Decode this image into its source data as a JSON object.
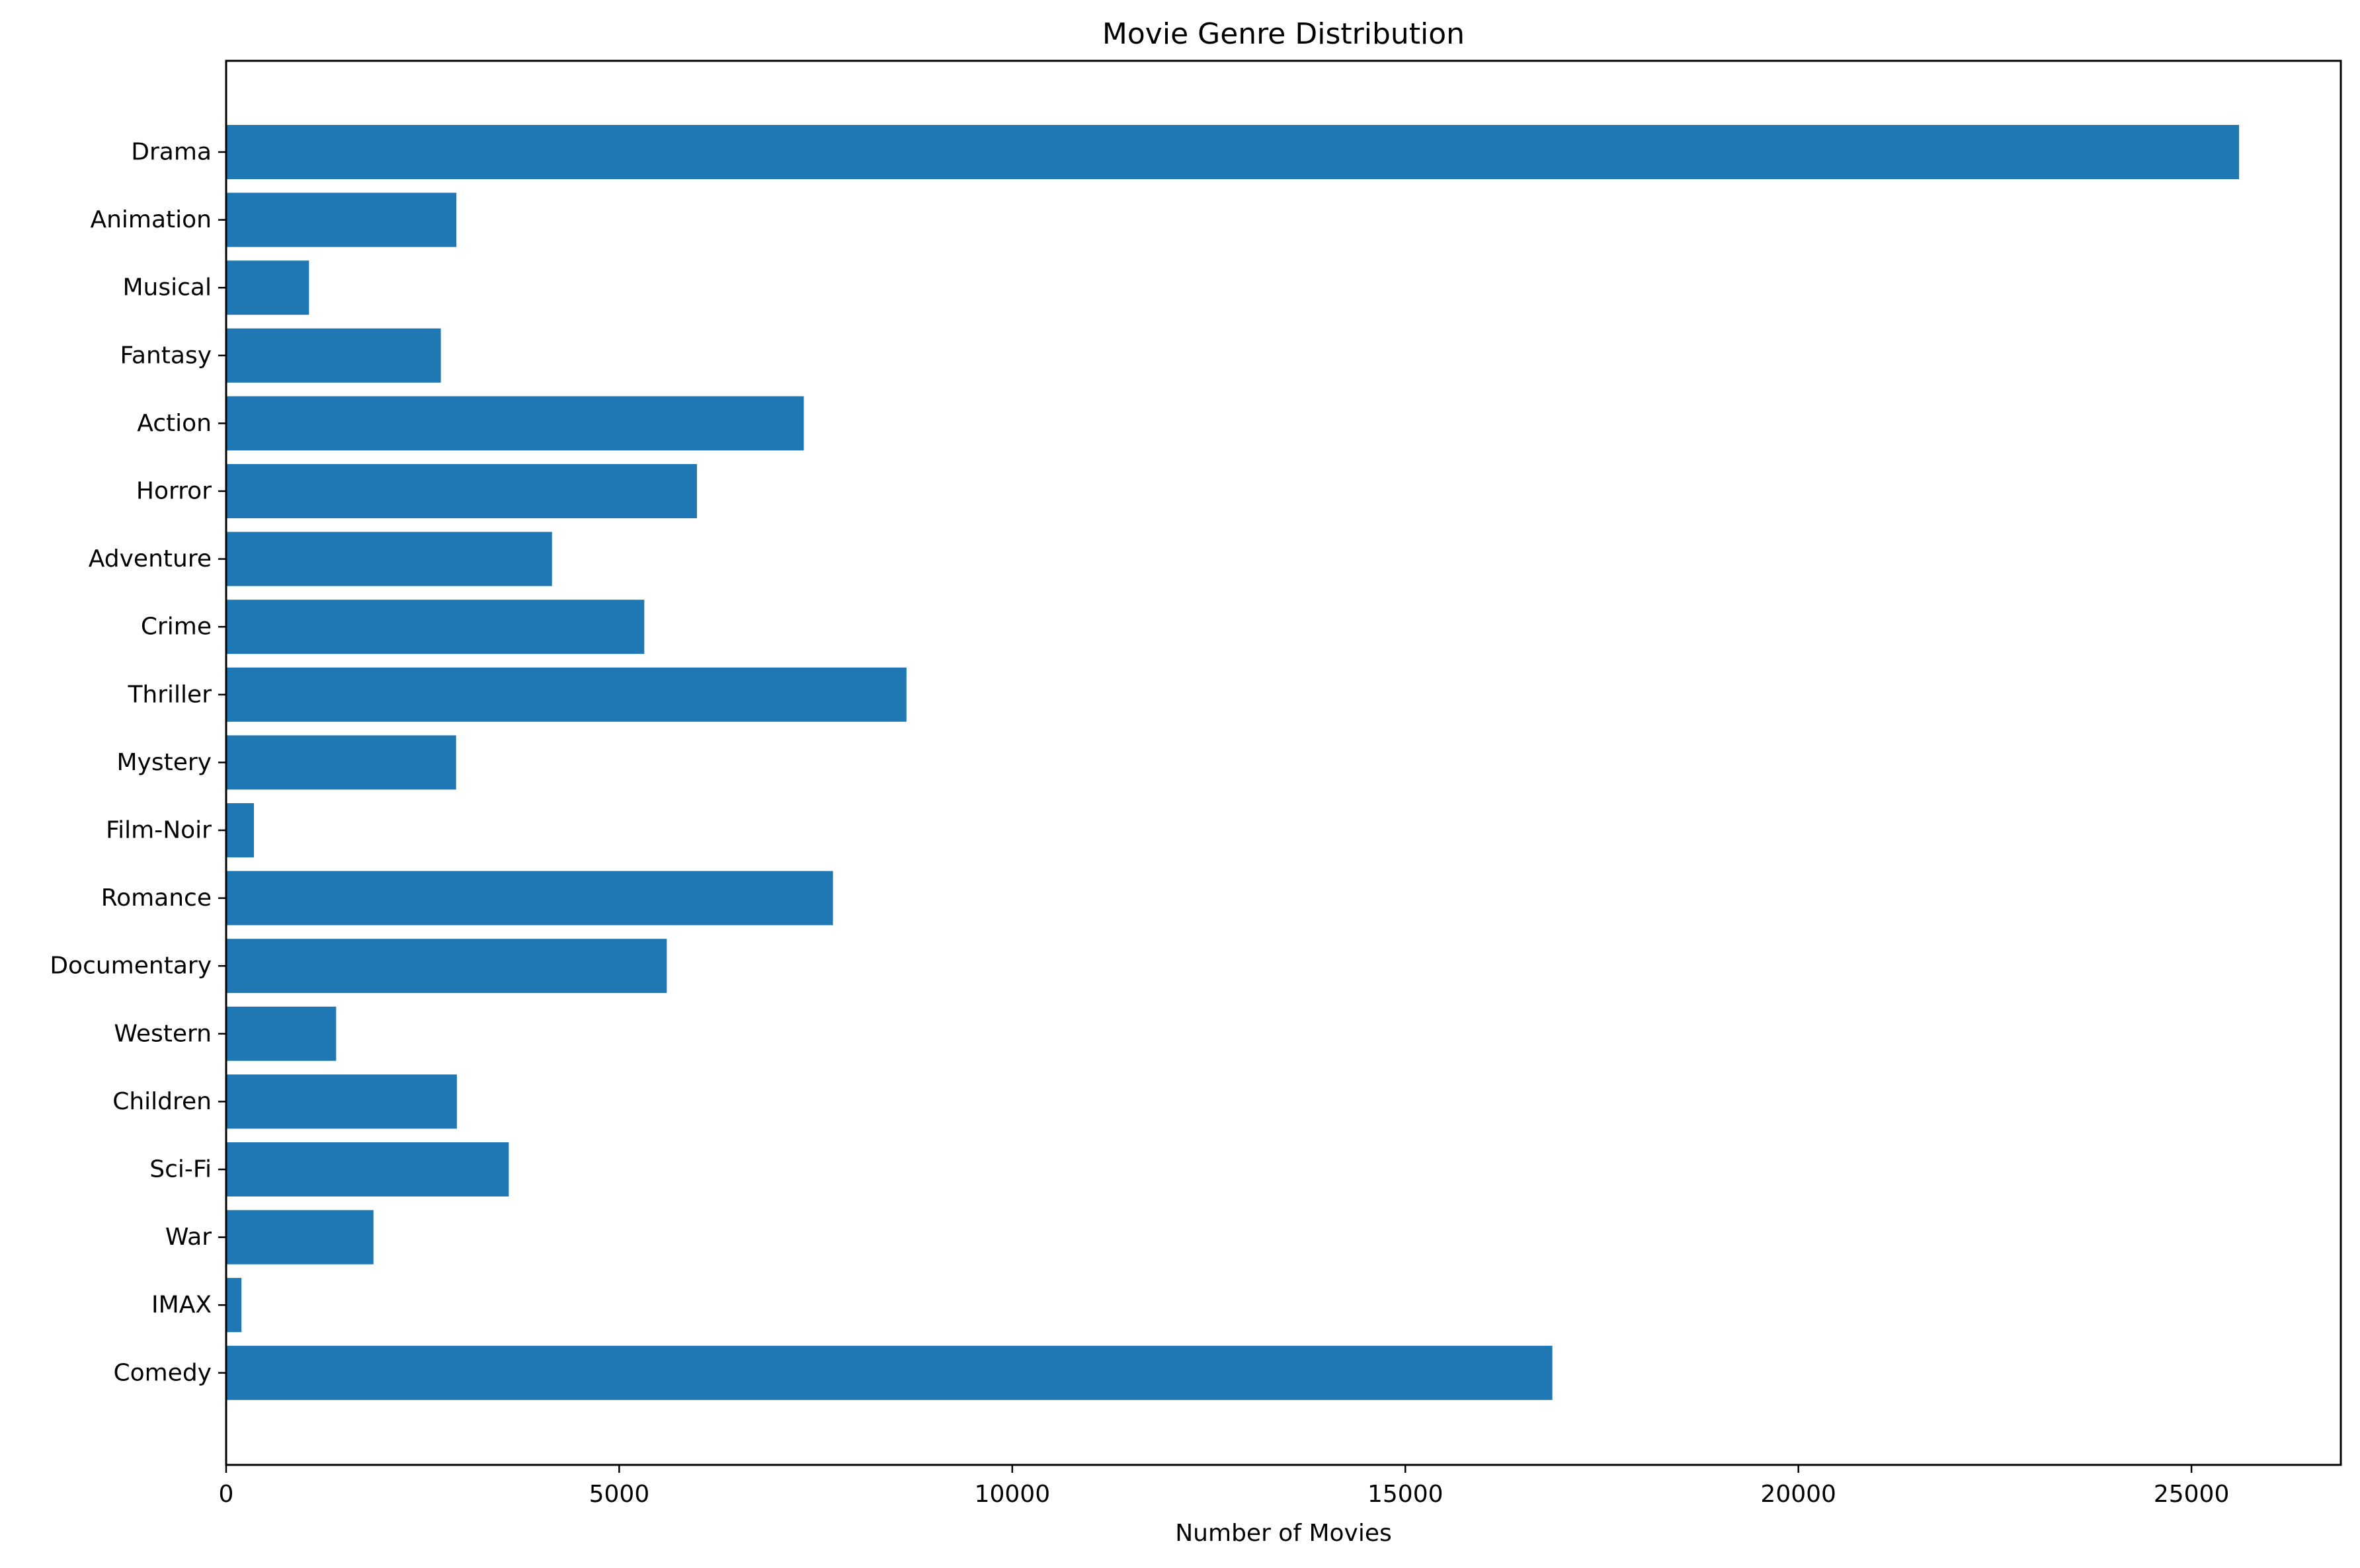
{
  "chart_data": {
    "type": "bar",
    "orientation": "horizontal",
    "title": "Movie Genre Distribution",
    "xlabel": "Number of Movies",
    "ylabel": "",
    "categories": [
      "Drama",
      "Animation",
      "Musical",
      "Fantasy",
      "Action",
      "Horror",
      "Adventure",
      "Crime",
      "Thriller",
      "Mystery",
      "Film-Noir",
      "Romance",
      "Documentary",
      "Western",
      "Children",
      "Sci-Fi",
      "War",
      "IMAX",
      "Comedy"
    ],
    "values": [
      25606,
      2929,
      1054,
      2731,
      7348,
      5989,
      4145,
      5319,
      8654,
      2925,
      353,
      7719,
      5605,
      1399,
      2935,
      3595,
      1874,
      195,
      16870
    ],
    "xlim": [
      0,
      26900
    ],
    "xticks": [
      0,
      5000,
      10000,
      15000,
      20000,
      25000
    ],
    "bar_color": "#1f77b4",
    "grid": false,
    "legend": "none"
  }
}
